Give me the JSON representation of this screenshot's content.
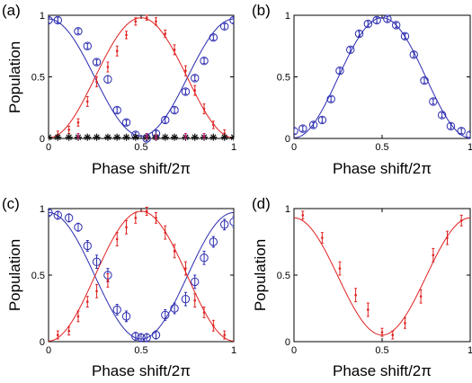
{
  "chart_data": [
    {
      "panel": "(a)",
      "type": "line",
      "xlabel": "Phase shift/2π",
      "ylabel": "Population",
      "xlim": [
        0,
        1
      ],
      "ylim": [
        0,
        1
      ],
      "xticks": [
        0,
        0.5,
        1
      ],
      "yticks": [
        0,
        0.5,
        1
      ],
      "xtick_labels": [
        "0",
        "0.5",
        "1"
      ],
      "ytick_labels": [
        "0",
        "0.5",
        "1"
      ],
      "grid": false,
      "series": [
        {
          "kind": "fit",
          "color": "#2b2bb0",
          "fit": "cos"
        },
        {
          "kind": "fit",
          "color": "#e02020",
          "fit": "sin"
        },
        {
          "kind": "points",
          "marker": "circle",
          "color": "#2b2bb0",
          "x": [
            0.0,
            0.05,
            0.16,
            0.21,
            0.26,
            0.32,
            0.37,
            0.42,
            0.47,
            0.53,
            0.58,
            0.63,
            0.68,
            0.74,
            0.79,
            0.84,
            0.89,
            0.95,
            1.0
          ],
          "y": [
            0.96,
            0.96,
            0.87,
            0.75,
            0.62,
            0.48,
            0.23,
            0.13,
            0.03,
            0.0,
            0.04,
            0.15,
            0.23,
            0.38,
            0.49,
            0.63,
            0.82,
            0.91,
            0.96
          ],
          "err": [
            0.02,
            0.02,
            0.02,
            0.02,
            0.02,
            0.03,
            0.02,
            0.02,
            0.02,
            0.02,
            0.02,
            0.02,
            0.02,
            0.02,
            0.02,
            0.02,
            0.02,
            0.02,
            0.02
          ]
        },
        {
          "kind": "points",
          "marker": "cross",
          "color": "#e02020",
          "x": [
            0.05,
            0.11,
            0.16,
            0.21,
            0.26,
            0.32,
            0.37,
            0.42,
            0.47,
            0.53,
            0.58,
            0.63,
            0.68,
            0.74,
            0.79,
            0.84,
            0.89,
            0.95
          ],
          "y": [
            0.03,
            0.07,
            0.13,
            0.3,
            0.46,
            0.58,
            0.71,
            0.84,
            0.95,
            0.98,
            0.95,
            0.85,
            0.72,
            0.55,
            0.39,
            0.24,
            0.11,
            0.04
          ],
          "err": [
            0.03,
            0.03,
            0.03,
            0.04,
            0.04,
            0.04,
            0.04,
            0.03,
            0.03,
            0.02,
            0.03,
            0.03,
            0.04,
            0.04,
            0.04,
            0.04,
            0.03,
            0.03
          ]
        },
        {
          "kind": "points",
          "marker": "star",
          "color": "#111111",
          "x": [
            0.0,
            0.05,
            0.11,
            0.16,
            0.21,
            0.26,
            0.32,
            0.37,
            0.42,
            0.47,
            0.53,
            0.58,
            0.63,
            0.68,
            0.74,
            0.79,
            0.84,
            0.89,
            0.95,
            1.0
          ],
          "y": [
            0.01,
            0.01,
            0.01,
            0.01,
            0.01,
            0.01,
            0.01,
            0.01,
            0.01,
            0.01,
            0.01,
            0.01,
            0.01,
            0.01,
            0.01,
            0.01,
            0.01,
            0.01,
            0.01,
            0.01
          ]
        },
        {
          "kind": "points",
          "marker": "cross",
          "color": "#c0207a",
          "x": [
            0.16,
            0.53,
            0.58,
            0.74,
            0.84
          ],
          "y": [
            0.02,
            0.02,
            0.01,
            0.02,
            0.02
          ],
          "err": [
            0.02,
            0.02,
            0.02,
            0.02,
            0.02
          ]
        }
      ]
    },
    {
      "panel": "(b)",
      "type": "line",
      "xlabel": "Phase shift/2π",
      "ylabel": "",
      "xlim": [
        0,
        1
      ],
      "ylim": [
        0,
        1
      ],
      "xticks": [
        0,
        0.5,
        1
      ],
      "yticks": [
        0,
        0.5,
        1
      ],
      "xtick_labels": [
        "0",
        "0.5",
        "1"
      ],
      "ytick_labels": [
        "0",
        "0.5",
        "1"
      ],
      "grid": false,
      "series": [
        {
          "kind": "fit",
          "color": "#2b2bb0",
          "fit": "sin"
        },
        {
          "kind": "points",
          "marker": "circle",
          "color": "#2b2bb0",
          "x": [
            0.0,
            0.05,
            0.11,
            0.16,
            0.21,
            0.26,
            0.32,
            0.37,
            0.42,
            0.47,
            0.53,
            0.58,
            0.63,
            0.68,
            0.74,
            0.79,
            0.84,
            0.89,
            0.95,
            1.0
          ],
          "y": [
            0.06,
            0.08,
            0.11,
            0.15,
            0.32,
            0.55,
            0.72,
            0.85,
            0.93,
            0.96,
            0.97,
            0.92,
            0.83,
            0.68,
            0.47,
            0.3,
            0.19,
            0.1,
            0.06,
            0.03
          ],
          "err": [
            0.02,
            0.02,
            0.02,
            0.02,
            0.02,
            0.02,
            0.02,
            0.02,
            0.02,
            0.02,
            0.02,
            0.02,
            0.02,
            0.02,
            0.02,
            0.02,
            0.02,
            0.02,
            0.02,
            0.02
          ]
        }
      ]
    },
    {
      "panel": "(c)",
      "type": "line",
      "xlabel": "Phase shift/2π",
      "ylabel": "Population",
      "xlim": [
        0,
        1
      ],
      "ylim": [
        0,
        1
      ],
      "xticks": [
        0,
        0.5,
        1
      ],
      "yticks": [
        0,
        0.5,
        1
      ],
      "xtick_labels": [
        "0",
        "0.5",
        "1"
      ],
      "ytick_labels": [
        "0",
        "0.5",
        "1"
      ],
      "grid": false,
      "series": [
        {
          "kind": "fit",
          "color": "#2b2bb0",
          "fit": "cos"
        },
        {
          "kind": "fit",
          "color": "#e02020",
          "fit": "sin"
        },
        {
          "kind": "points",
          "marker": "circle",
          "color": "#2b2bb0",
          "x": [
            0.0,
            0.05,
            0.11,
            0.16,
            0.21,
            0.26,
            0.32,
            0.37,
            0.42,
            0.47,
            0.5,
            0.53,
            0.58,
            0.63,
            0.68,
            0.74,
            0.79,
            0.84,
            0.89,
            0.95,
            1.0
          ],
          "y": [
            0.97,
            0.95,
            0.93,
            0.86,
            0.72,
            0.6,
            0.5,
            0.24,
            0.19,
            0.04,
            0.03,
            0.03,
            0.05,
            0.2,
            0.25,
            0.32,
            0.45,
            0.63,
            0.75,
            0.88,
            0.9
          ],
          "err": [
            0.02,
            0.03,
            0.03,
            0.03,
            0.04,
            0.05,
            0.05,
            0.04,
            0.04,
            0.03,
            0.03,
            0.03,
            0.03,
            0.04,
            0.04,
            0.05,
            0.05,
            0.05,
            0.04,
            0.04,
            0.04
          ]
        },
        {
          "kind": "points",
          "marker": "cross",
          "color": "#e02020",
          "x": [
            0.05,
            0.11,
            0.16,
            0.21,
            0.26,
            0.32,
            0.37,
            0.42,
            0.47,
            0.53,
            0.58,
            0.63,
            0.68,
            0.74,
            0.79,
            0.84,
            0.89,
            0.95
          ],
          "y": [
            0.05,
            0.08,
            0.19,
            0.3,
            0.38,
            0.46,
            0.77,
            0.86,
            0.93,
            0.98,
            0.93,
            0.82,
            0.68,
            0.55,
            0.31,
            0.22,
            0.12,
            0.05
          ],
          "err": [
            0.03,
            0.03,
            0.04,
            0.04,
            0.05,
            0.05,
            0.05,
            0.05,
            0.04,
            0.03,
            0.04,
            0.05,
            0.05,
            0.05,
            0.05,
            0.04,
            0.04,
            0.03
          ]
        }
      ]
    },
    {
      "panel": "(d)",
      "type": "line",
      "xlabel": "Phase shift/2π",
      "ylabel": "Population",
      "xlim": [
        0,
        1
      ],
      "ylim": [
        0,
        1
      ],
      "xticks": [
        0,
        0.5,
        1
      ],
      "yticks": [
        0,
        0.5,
        1
      ],
      "xtick_labels": [
        "0",
        "0.5",
        "1"
      ],
      "ytick_labels": [
        "0",
        "0.5",
        "1"
      ],
      "grid": false,
      "series": [
        {
          "kind": "fit",
          "color": "#e02020",
          "fit": "damped"
        },
        {
          "kind": "points",
          "marker": "cross",
          "color": "#e02020",
          "x": [
            0.05,
            0.16,
            0.26,
            0.35,
            0.42,
            0.5,
            0.56,
            0.63,
            0.72,
            0.79,
            0.87,
            0.95
          ],
          "y": [
            0.95,
            0.78,
            0.55,
            0.35,
            0.24,
            0.07,
            0.05,
            0.14,
            0.34,
            0.65,
            0.78,
            0.91
          ],
          "err": [
            0.03,
            0.04,
            0.05,
            0.05,
            0.05,
            0.03,
            0.03,
            0.04,
            0.05,
            0.05,
            0.05,
            0.04
          ]
        }
      ]
    }
  ]
}
